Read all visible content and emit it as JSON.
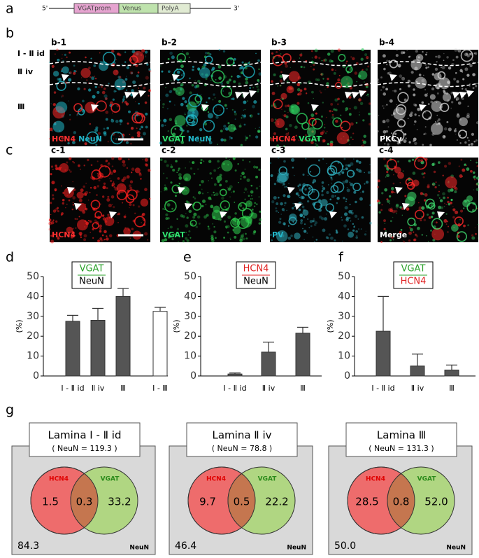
{
  "panel_labels": [
    "a",
    "b",
    "c",
    "d",
    "e",
    "f",
    "g"
  ],
  "construct": {
    "left": "5'",
    "right": "3'",
    "segments": [
      {
        "label": "VGATprom",
        "color": "#e6a4d0"
      },
      {
        "label": "Venus",
        "color": "#bfe3ad"
      },
      {
        "label": "PolyA",
        "color": "#e1ebd3"
      }
    ]
  },
  "panel_b": {
    "layers": [
      "Ⅰ - Ⅱ id",
      "Ⅱ iv",
      "Ⅲ"
    ],
    "images": [
      {
        "label": "b-1",
        "colors": [
          "#ff2a2a",
          "#20b8c8"
        ],
        "stains": [
          {
            "text": "HCN4",
            "color": "#ff3030"
          },
          {
            "text": "NeuN",
            "color": "#22b5c8"
          }
        ]
      },
      {
        "label": "b-2",
        "colors": [
          "#30d060",
          "#20b8c8"
        ],
        "stains": [
          {
            "text": "VGAT",
            "color": "#30e070"
          },
          {
            "text": "NeuN",
            "color": "#22b5c8"
          }
        ]
      },
      {
        "label": "b-3",
        "colors": [
          "#ff2a2a",
          "#30d060"
        ],
        "stains": [
          {
            "text": "HCN4",
            "color": "#ff3030"
          },
          {
            "text": "VGAT",
            "color": "#30e070"
          }
        ]
      },
      {
        "label": "b-4",
        "colors": [
          "#d8d8d8"
        ],
        "stains": [
          {
            "text": "PKCγ",
            "color": "#ffffff"
          }
        ]
      }
    ]
  },
  "panel_c": {
    "images": [
      {
        "label": "c-1",
        "colors": [
          "#ff2020"
        ],
        "stains": [
          {
            "text": "HCN4",
            "color": "#ff3030"
          }
        ]
      },
      {
        "label": "c-2",
        "colors": [
          "#30d050"
        ],
        "stains": [
          {
            "text": "VGAT",
            "color": "#30e070"
          }
        ]
      },
      {
        "label": "c-3",
        "colors": [
          "#30b0c0"
        ],
        "stains": [
          {
            "text": "PV",
            "color": "#22b5c8"
          }
        ]
      },
      {
        "label": "c-4",
        "colors": [
          "#ff2a2a",
          "#40e070"
        ],
        "stains": [
          {
            "text": "Merge",
            "color": "#ffffff"
          }
        ]
      }
    ]
  },
  "chart_data": [
    {
      "type": "bar",
      "ylabel": "(%)",
      "categories": [
        "Ⅰ - Ⅱ id",
        "Ⅱ iv",
        "Ⅲ",
        "Ⅰ - Ⅲ"
      ],
      "values": [
        27.5,
        28,
        40,
        32.5
      ],
      "errors": [
        3,
        6,
        4,
        2
      ],
      "colors": [
        "#555555",
        "#555555",
        "#555555",
        "#ffffff"
      ],
      "ylim": [
        0,
        50
      ],
      "yticks": [
        0,
        10,
        20,
        30,
        40,
        50
      ],
      "legend": {
        "numerator": "VGAT",
        "numerator_color": "#2aa02a",
        "denominator": "NeuN",
        "denominator_color": "#000000"
      }
    },
    {
      "type": "bar",
      "ylabel": "(%)",
      "categories": [
        "Ⅰ - Ⅱ id",
        "Ⅱ iv",
        "Ⅲ"
      ],
      "values": [
        1,
        12,
        21.5
      ],
      "errors": [
        0.5,
        5,
        3
      ],
      "colors": [
        "#555555",
        "#555555",
        "#555555"
      ],
      "ylim": [
        0,
        50
      ],
      "yticks": [
        0,
        10,
        20,
        30,
        40,
        50
      ],
      "legend": {
        "numerator": "HCN4",
        "numerator_color": "#e02020",
        "denominator": "NeuN",
        "denominator_color": "#000000"
      }
    },
    {
      "type": "bar",
      "ylabel": "(%)",
      "categories": [
        "Ⅰ - Ⅱ id",
        "Ⅱ iv",
        "Ⅲ"
      ],
      "values": [
        22.5,
        5,
        3
      ],
      "errors": [
        17.5,
        6,
        2.5
      ],
      "colors": [
        "#555555",
        "#555555",
        "#555555"
      ],
      "ylim": [
        0,
        50
      ],
      "yticks": [
        0,
        10,
        20,
        30,
        40,
        50
      ],
      "legend": {
        "numerator": "VGAT",
        "numerator_color": "#2aa02a",
        "denominator": "HCN4",
        "denominator_color": "#e02020"
      }
    }
  ],
  "panel_g": {
    "left_color": "#ee6c6c",
    "right_color": "#b0d682",
    "overlap_color": "#c5764f",
    "venns": [
      {
        "title": "Lamina Ⅰ - Ⅱ id",
        "subtitle": "( NeuN = 119.3 )",
        "left_label": "HCN4",
        "right_label": "VGAT",
        "left_only": "1.5",
        "overlap": "0.3",
        "right_only": "33.2",
        "outside": "84.3",
        "outside_label": "NeuN"
      },
      {
        "title": "Lamina Ⅱ iv",
        "subtitle": "( NeuN = 78.8 )",
        "left_label": "HCN4",
        "right_label": "VGAT",
        "left_only": "9.7",
        "overlap": "0.5",
        "right_only": "22.2",
        "outside": "46.4",
        "outside_label": "NeuN"
      },
      {
        "title": "Lamina Ⅲ",
        "subtitle": "( NeuN = 131.3 )",
        "left_label": "HCN4",
        "right_label": "VGAT",
        "left_only": "28.5",
        "overlap": "0.8",
        "right_only": "52.0",
        "outside": "50.0",
        "outside_label": "NeuN"
      }
    ]
  }
}
